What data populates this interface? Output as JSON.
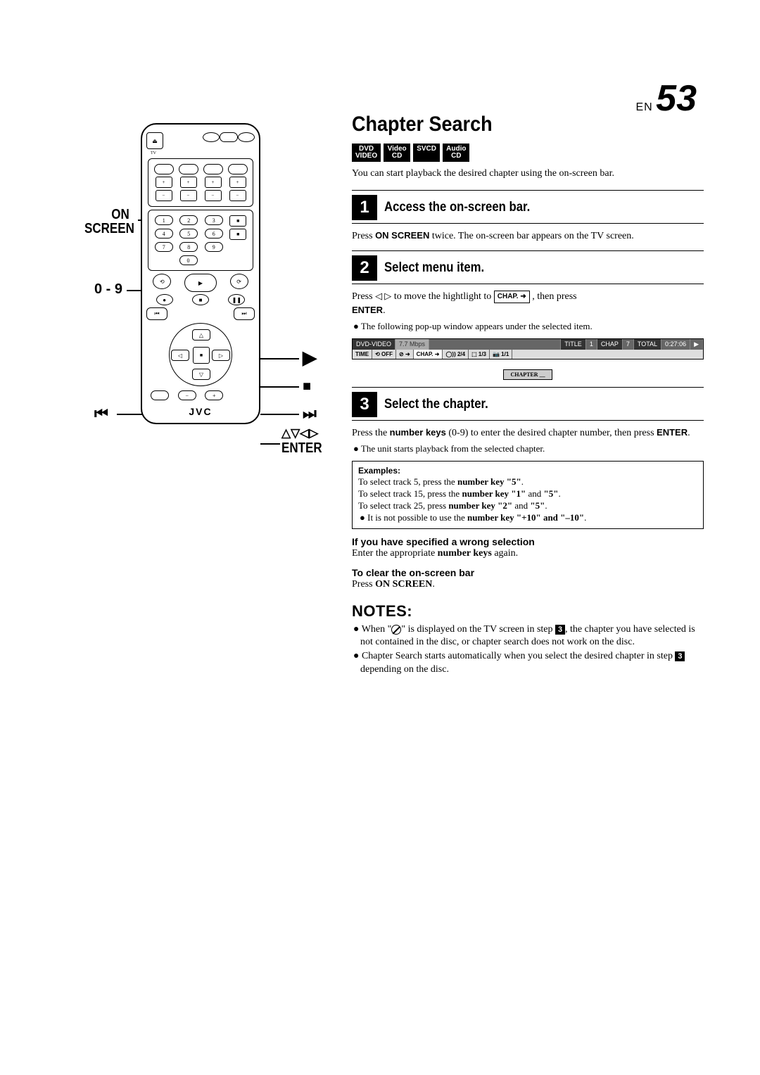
{
  "page": {
    "prefix": "EN",
    "number": "53"
  },
  "remote": {
    "callouts": {
      "on_screen": "ON\nSCREEN",
      "numbers": "0 - 9",
      "prev": "⏮",
      "next": "⏭",
      "play": "▶",
      "stop": "■",
      "arrows": "△▽◁▷",
      "enter": "ENTER"
    },
    "brand": "JVC",
    "tv_label": "TV"
  },
  "title": "Chapter Search",
  "media_badges": [
    {
      "line1": "DVD",
      "line2": "VIDEO"
    },
    {
      "line1": "Video",
      "line2": "CD"
    },
    {
      "line1": "SVCD",
      "line2": ""
    },
    {
      "line1": "Audio",
      "line2": "CD"
    }
  ],
  "intro": "You can start playback the desired chapter using the on-screen bar.",
  "steps": [
    {
      "num": "1",
      "title": "Access the on-screen bar.",
      "body_html": "Press <b>ON SCREEN</b> twice. The on-screen bar appears on the TV screen."
    },
    {
      "num": "2",
      "title": "Select menu item.",
      "body_parts": {
        "pre": "Press ",
        "tri": "◁ ▷",
        "mid": " to move the hightlight to ",
        "chap": "CHAP. ➜",
        "post": " , then press",
        "enter": "ENTER",
        "dot": "."
      },
      "bullet": "The following pop-up window appears under the selected item."
    },
    {
      "num": "3",
      "title": "Select the chapter.",
      "body_html": "Press the <b>number keys</b> (0-9) to enter the desired chapter number, then press <b>ENTER</b>.",
      "bullet": "The unit starts playback from the selected chapter."
    }
  ],
  "osb": {
    "row1": {
      "media": "DVD-VIDEO",
      "bitrate": "7.7 Mbps",
      "title_label": "TITLE",
      "title_num": "1",
      "chap_label": "CHAP",
      "chap_num": "7",
      "total_label": "TOTAL",
      "time": "0:27:06",
      "play": "▶"
    },
    "row2": {
      "c1": "TIME",
      "c2": "⟲ OFF",
      "c3": "⊘ ➜",
      "c4": "CHAP. ➜",
      "c5": "◯)) 2/4",
      "c6": "⬚ 1/3",
      "c7": "📷 1/1"
    },
    "popup_label": "CHAPTER",
    "popup_value": "__"
  },
  "examples": {
    "title": "Examples:",
    "lines": [
      "To select track 5, press the <b>number key \"5\"</b>.",
      "To select track 15, press the <b>number key \"1\"</b> and <b>\"5\"</b>.",
      "To select track 25, press <b>number key \"2\"</b> and <b>\"5\"</b>."
    ],
    "bullet": "It is not possible to use the <b>number key \"+10\" and \"–10\"</b>."
  },
  "wrong_selection": {
    "heading": "If you have specified a wrong selection",
    "text": "Enter the appropriate <b>number keys</b> again."
  },
  "clear_bar": {
    "heading": "To clear the on-screen bar",
    "text": "Press <b>ON SCREEN</b>."
  },
  "notes": {
    "heading": "NOTES:",
    "items": [
      {
        "pre": "When \"",
        "icon": "nogo",
        "mid": "\" is displayed on the TV screen in step ",
        "step": "3",
        "post": ", the chapter you have selected is not contained in the disc, or chapter search does not work on the disc."
      },
      {
        "pre": "Chapter Search starts automatically when you select the desired chapter in step ",
        "step": "3",
        "post": " depending on the disc."
      }
    ]
  }
}
